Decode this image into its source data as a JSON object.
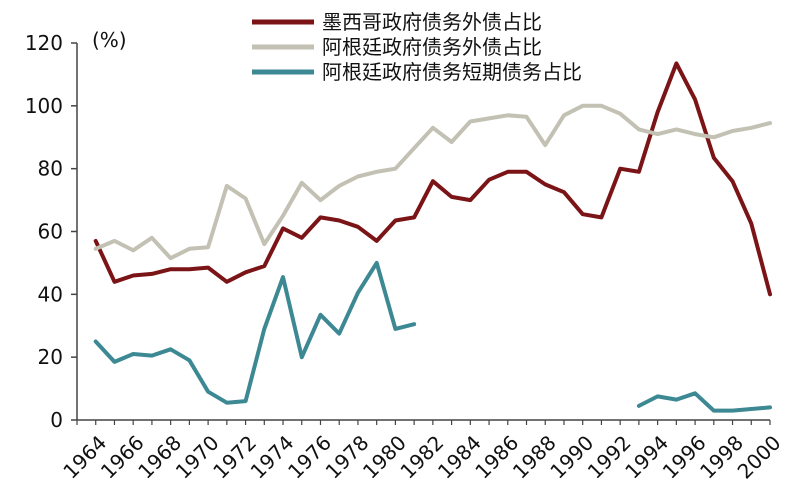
{
  "chart_data": {
    "type": "line",
    "unit": "(%)",
    "x": [
      1964,
      1965,
      1966,
      1967,
      1968,
      1969,
      1970,
      1971,
      1972,
      1973,
      1974,
      1975,
      1976,
      1977,
      1978,
      1979,
      1980,
      1981,
      1982,
      1983,
      1984,
      1985,
      1986,
      1987,
      1988,
      1989,
      1990,
      1991,
      1992,
      1993,
      1994,
      1995,
      1996,
      1997,
      1998,
      1999,
      2000
    ],
    "x_tick_labels": [
      "1964",
      "1966",
      "1968",
      "1970",
      "1972",
      "1974",
      "1976",
      "1978",
      "1980",
      "1982",
      "1984",
      "1986",
      "1988",
      "1990",
      "1992",
      "1994",
      "1996",
      "1998",
      "2000"
    ],
    "y_tick_labels": [
      "0",
      "20",
      "40",
      "60",
      "80",
      "100",
      "120"
    ],
    "ylim": [
      0,
      120
    ],
    "xlim": [
      1963,
      2000
    ],
    "grid": false,
    "legend_placement": "top-center",
    "series": [
      {
        "name": "墨西哥政府债务外债占比",
        "color": "#7B1416",
        "values": [
          57,
          44,
          46,
          46.5,
          48,
          48,
          48.5,
          44,
          47,
          49,
          61,
          58,
          64.5,
          63.5,
          61.5,
          57,
          63.5,
          64.5,
          76,
          71,
          70,
          76.5,
          79,
          79,
          75,
          72.5,
          65.5,
          64.5,
          80,
          79,
          98,
          113.5,
          102,
          83.5,
          76,
          62.5,
          40
        ]
      },
      {
        "name": "阿根廷政府债务外债占比",
        "color": "#C3C1B4",
        "values": [
          54.5,
          57,
          54,
          58,
          51.5,
          54.5,
          55,
          74.5,
          70.5,
          56,
          65,
          75.5,
          70,
          74.5,
          77.5,
          79,
          80,
          86.5,
          93,
          88.5,
          95,
          96,
          97,
          96.5,
          87.5,
          97,
          100,
          100,
          97.5,
          92.5,
          91,
          92.5,
          91,
          90,
          92,
          93,
          94.5
        ]
      },
      {
        "name": "阿根廷政府债务短期债务占比",
        "color": "#3C8893",
        "values": [
          25,
          18.5,
          21,
          20.5,
          22.5,
          19,
          9,
          5.5,
          6,
          29,
          45.5,
          20,
          33.5,
          27.5,
          40.5,
          50,
          29,
          30.5,
          null,
          null,
          null,
          null,
          null,
          null,
          null,
          null,
          null,
          null,
          null,
          4.5,
          7.5,
          6.5,
          8.5,
          3,
          3,
          3.5,
          4
        ]
      }
    ]
  }
}
